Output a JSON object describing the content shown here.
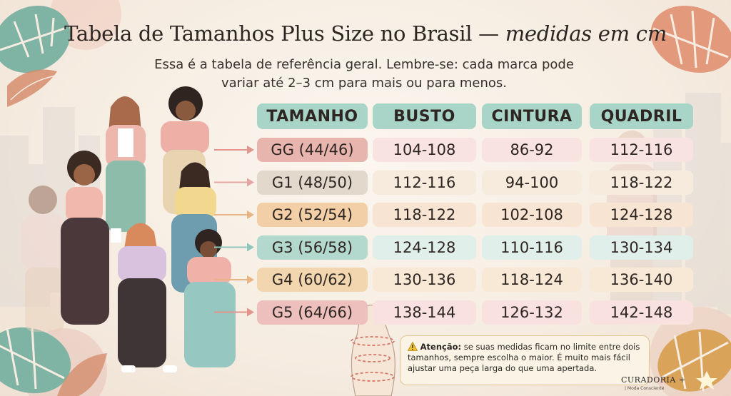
{
  "title": {
    "main": "Tabela de Tamanhos Plus Size no Brasil — ",
    "italic": "medidas em cm"
  },
  "subtitle": "Essa é a tabela de referência geral. Lembre-se: cada marca pode variar até 2–3 cm para mais ou para menos.",
  "table": {
    "headers": [
      "TAMANHO",
      "BUSTO",
      "CINTURA",
      "QUADRIL"
    ],
    "rows": [
      {
        "size": "GG (44/46)",
        "bust": "104-108",
        "waist": "86-92",
        "hip": "112-116"
      },
      {
        "size": "G1 (48/50)",
        "bust": "112-116",
        "waist": "94-100",
        "hip": "118-122"
      },
      {
        "size": "G2 (52/54)",
        "bust": "118-122",
        "waist": "102-108",
        "hip": "124-128"
      },
      {
        "size": "G3 (56/58)",
        "bust": "124-128",
        "waist": "110-116",
        "hip": "130-134"
      },
      {
        "size": "G4 (60/62)",
        "bust": "130-136",
        "waist": "118-124",
        "hip": "136-140"
      },
      {
        "size": "G5 (64/66)",
        "bust": "138-144",
        "waist": "126-132",
        "hip": "142-148"
      }
    ],
    "size_colors": [
      "#e8b4ae",
      "#e3d8cc",
      "#f2cfa6",
      "#b3d9cf",
      "#f1d6b0",
      "#eec0bd"
    ],
    "value_colors": [
      "#f8e3e0",
      "#f6ebdd",
      "#f8e4d2",
      "#e1efea",
      "#f8e8d6",
      "#f8e1de"
    ],
    "arrow_colors": [
      "#e2958c",
      "#e3a6a2",
      "#e9b483",
      "#8fc8bb",
      "#e9b483",
      "#e2958c"
    ]
  },
  "notice": {
    "icon": "warning-icon",
    "label": "Atenção:",
    "text": " se suas medidas ficam no limite entre dois tamanhos, sempre escolha o maior. É muito mais fácil ajustar uma peça larga do que uma apertada."
  },
  "brand": {
    "name": "CURADORIA +",
    "tagline": "| Moda Consciente"
  }
}
